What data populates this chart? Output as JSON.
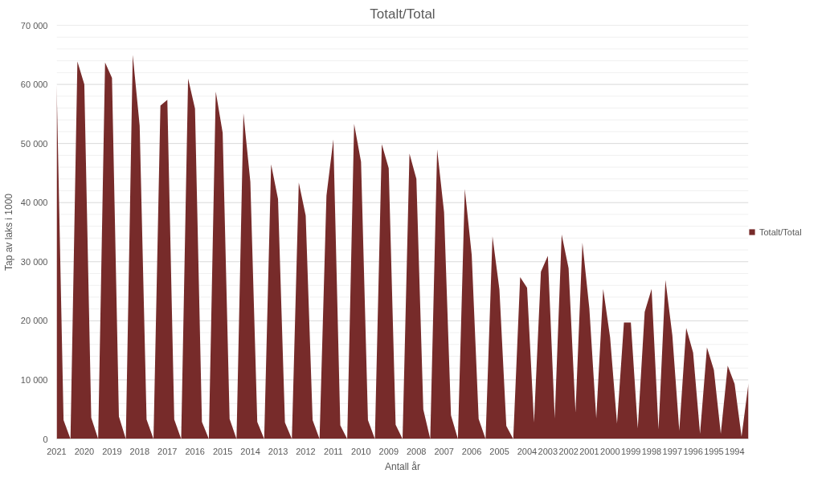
{
  "chart_data": {
    "type": "area",
    "title": "Totalt/Total",
    "xlabel": "Antall år",
    "ylabel": "Tap av laks i 1000",
    "categories": [
      "2021",
      null,
      null,
      null,
      "2020",
      null,
      null,
      null,
      "2019",
      null,
      null,
      null,
      "2018",
      null,
      null,
      null,
      "2017",
      null,
      null,
      null,
      "2016",
      null,
      null,
      null,
      "2015",
      null,
      null,
      null,
      "2014",
      null,
      null,
      null,
      "2013",
      null,
      null,
      null,
      "2012",
      null,
      null,
      null,
      "2011",
      null,
      null,
      null,
      "2010",
      null,
      null,
      null,
      "2009",
      null,
      null,
      null,
      "2008",
      null,
      null,
      null,
      "2007",
      null,
      null,
      null,
      "2006",
      null,
      null,
      null,
      "2005",
      null,
      null,
      null,
      "2004",
      null,
      null,
      "2003",
      null,
      null,
      "2002",
      null,
      null,
      "2001",
      null,
      null,
      "2000",
      null,
      null,
      "1999",
      null,
      null,
      "1998",
      null,
      null,
      "1997",
      null,
      null,
      "1996",
      null,
      null,
      "1995",
      null,
      null,
      "1994",
      null,
      null
    ],
    "series": [
      {
        "name": "Totalt/Total",
        "color": "#772b2a",
        "values": [
          60000,
          3200,
          0,
          63900,
          60000,
          3600,
          0,
          63700,
          61100,
          3800,
          0,
          65000,
          53000,
          3300,
          0,
          56400,
          57400,
          3300,
          0,
          61000,
          55900,
          2900,
          0,
          58800,
          51800,
          3400,
          0,
          55100,
          43500,
          2900,
          0,
          46500,
          40600,
          2800,
          0,
          43400,
          37800,
          3200,
          0,
          41200,
          50700,
          2300,
          0,
          53300,
          46900,
          3200,
          0,
          49900,
          45800,
          2400,
          0,
          48300,
          44000,
          5000,
          0,
          49000,
          38400,
          4000,
          0,
          42300,
          31100,
          3400,
          0,
          34300,
          25300,
          2200,
          0,
          27400,
          25600,
          2800,
          28300,
          31000,
          3500,
          34600,
          28900,
          4500,
          33200,
          22100,
          3500,
          25400,
          17200,
          2600,
          19700,
          19700,
          1800,
          21500,
          25400,
          1600,
          26900,
          17500,
          1400,
          18800,
          14600,
          900,
          15500,
          11700,
          900,
          12400,
          9300,
          400,
          9400
        ]
      }
    ],
    "ylim": [
      0,
      70000
    ],
    "yticks": [
      0,
      {
        "value": 2000,
        "label": null
      },
      {
        "value": 4000,
        "label": null
      },
      {
        "value": 6000,
        "label": null
      },
      {
        "value": 8000,
        "label": null
      },
      {
        "value": 10000,
        "label": "10 000"
      },
      {
        "value": 12000,
        "label": null
      },
      {
        "value": 14000,
        "label": null
      },
      {
        "value": 16000,
        "label": null
      },
      {
        "value": 18000,
        "label": null
      },
      {
        "value": 20000,
        "label": "20 000"
      },
      {
        "value": 22000,
        "label": null
      },
      {
        "value": 24000,
        "label": null
      },
      {
        "value": 26000,
        "label": null
      },
      {
        "value": 28000,
        "label": null
      },
      {
        "value": 30000,
        "label": "30 000"
      },
      {
        "value": 32000,
        "label": null
      },
      {
        "value": 34000,
        "label": null
      },
      {
        "value": 36000,
        "label": null
      },
      {
        "value": 38000,
        "label": null
      },
      {
        "value": 40000,
        "label": "40 000"
      },
      {
        "value": 42000,
        "label": null
      },
      {
        "value": 44000,
        "label": null
      },
      {
        "value": 46000,
        "label": null
      },
      {
        "value": 48000,
        "label": null
      },
      {
        "value": 50000,
        "label": "50 000"
      },
      {
        "value": 52000,
        "label": null
      },
      {
        "value": 54000,
        "label": null
      },
      {
        "value": 56000,
        "label": null
      },
      {
        "value": 58000,
        "label": null
      },
      {
        "value": 60000,
        "label": "60 000"
      },
      {
        "value": 62000,
        "label": null
      },
      {
        "value": 64000,
        "label": null
      },
      {
        "value": 66000,
        "label": null
      },
      {
        "value": 68000,
        "label": null
      },
      {
        "value": 70000,
        "label": "70 000"
      }
    ],
    "grid": "y",
    "legend": "right"
  }
}
